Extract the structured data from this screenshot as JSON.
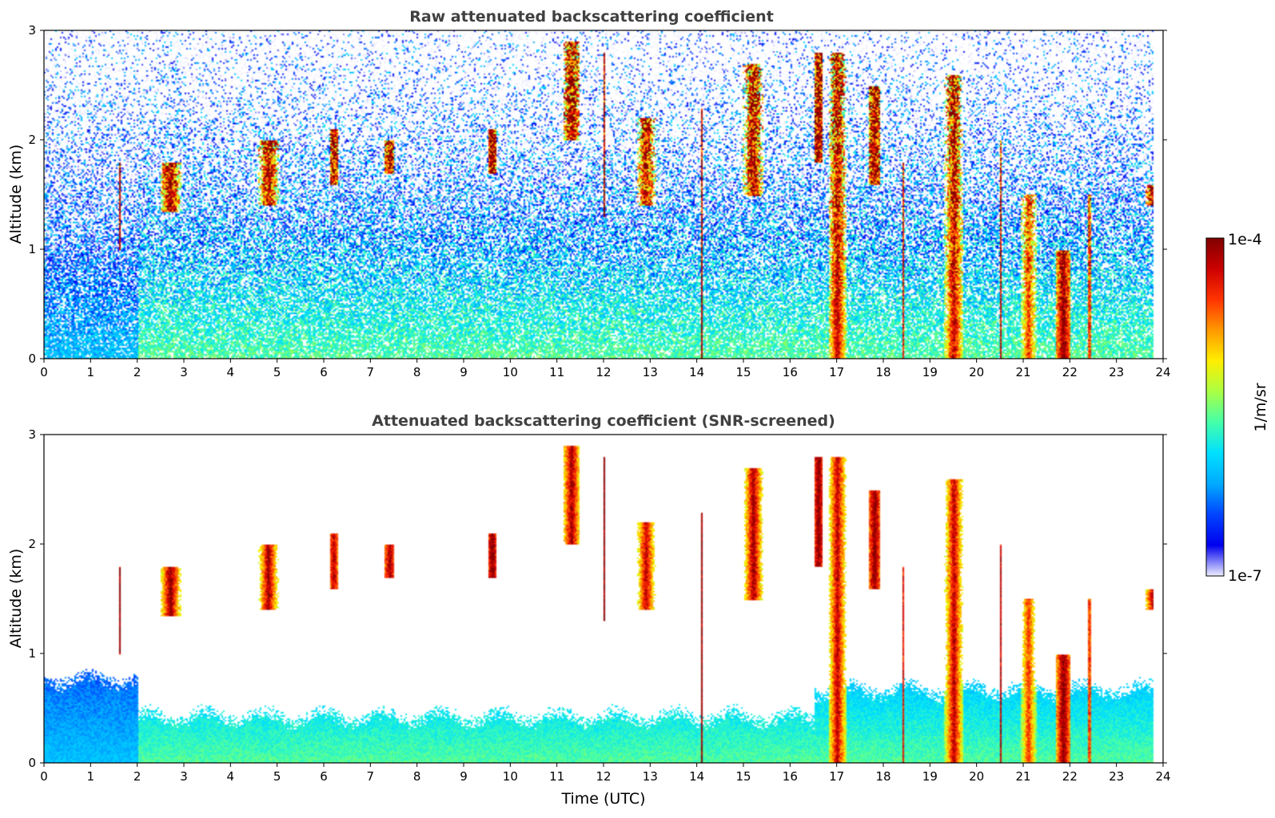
{
  "chart_data": [
    {
      "type": "heatmap",
      "title": "Raw attenuated backscattering coefficient",
      "xlabel": "",
      "ylabel": "Altitude (km)",
      "xlim": [
        0,
        24
      ],
      "ylim": [
        0,
        3
      ],
      "xticks": [
        "0",
        "1",
        "2",
        "3",
        "4",
        "5",
        "6",
        "7",
        "8",
        "9",
        "10",
        "11",
        "12",
        "13",
        "14",
        "15",
        "16",
        "17",
        "18",
        "19",
        "20",
        "21",
        "22",
        "23",
        "24"
      ],
      "yticks": [
        "0",
        "1",
        "2",
        "3"
      ],
      "screened": false,
      "cloud_events": [
        {
          "t": 1.6,
          "top": 1.8,
          "base": 1.0,
          "log10": -4.0
        },
        {
          "t": 2.7,
          "top": 1.8,
          "base": 1.35,
          "log10": -4.0
        },
        {
          "t": 4.8,
          "top": 2.0,
          "base": 1.4,
          "log10": -4.1
        },
        {
          "t": 6.2,
          "top": 2.1,
          "base": 1.6,
          "log10": -4.2
        },
        {
          "t": 7.4,
          "top": 2.0,
          "base": 1.7,
          "log10": -4.1
        },
        {
          "t": 9.6,
          "top": 2.1,
          "base": 1.7,
          "log10": -4.0
        },
        {
          "t": 11.3,
          "top": 2.9,
          "base": 2.0,
          "log10": -4.1
        },
        {
          "t": 12.0,
          "top": 2.8,
          "base": 1.3,
          "log10": -4.0
        },
        {
          "t": 12.9,
          "top": 2.2,
          "base": 1.4,
          "log10": -4.2
        },
        {
          "t": 14.1,
          "top": 2.3,
          "base": 0.0,
          "log10": -4.0
        },
        {
          "t": 15.2,
          "top": 2.7,
          "base": 1.5,
          "log10": -4.1
        },
        {
          "t": 16.6,
          "top": 2.8,
          "base": 1.8,
          "log10": -4.0
        },
        {
          "t": 17.0,
          "top": 2.8,
          "base": 0.0,
          "log10": -4.2
        },
        {
          "t": 17.8,
          "top": 2.5,
          "base": 1.6,
          "log10": -4.0
        },
        {
          "t": 18.4,
          "top": 1.8,
          "base": 0.0,
          "log10": -4.3
        },
        {
          "t": 19.5,
          "top": 2.6,
          "base": 0.0,
          "log10": -4.2
        },
        {
          "t": 20.5,
          "top": 2.0,
          "base": 0.0,
          "log10": -4.2
        },
        {
          "t": 21.1,
          "top": 1.5,
          "base": 0.0,
          "log10": -4.5
        },
        {
          "t": 21.85,
          "top": 1.0,
          "base": 0.0,
          "log10": -4.0
        },
        {
          "t": 22.4,
          "top": 1.5,
          "base": 0.0,
          "log10": -4.5
        },
        {
          "t": 23.8,
          "top": 1.6,
          "base": 1.4,
          "log10": -4.0
        }
      ]
    },
    {
      "type": "heatmap",
      "title": "Attenuated backscattering coefficient (SNR-screened)",
      "xlabel": "Time (UTC)",
      "ylabel": "Altitude (km)",
      "xlim": [
        0,
        24
      ],
      "ylim": [
        0,
        3
      ],
      "xticks": [
        "0",
        "1",
        "2",
        "3",
        "4",
        "5",
        "6",
        "7",
        "8",
        "9",
        "10",
        "11",
        "12",
        "13",
        "14",
        "15",
        "16",
        "17",
        "18",
        "19",
        "20",
        "21",
        "22",
        "23",
        "24"
      ],
      "yticks": [
        "0",
        "1",
        "2",
        "3"
      ],
      "screened": true,
      "cloud_events": [
        {
          "t": 1.6,
          "top": 1.8,
          "base": 1.0,
          "log10": -4.0
        },
        {
          "t": 2.7,
          "top": 1.8,
          "base": 1.35,
          "log10": -4.0
        },
        {
          "t": 4.8,
          "top": 2.0,
          "base": 1.4,
          "log10": -4.1
        },
        {
          "t": 6.2,
          "top": 2.1,
          "base": 1.6,
          "log10": -4.2
        },
        {
          "t": 7.4,
          "top": 2.0,
          "base": 1.7,
          "log10": -4.1
        },
        {
          "t": 9.6,
          "top": 2.1,
          "base": 1.7,
          "log10": -4.0
        },
        {
          "t": 11.3,
          "top": 2.9,
          "base": 2.0,
          "log10": -4.1
        },
        {
          "t": 12.0,
          "top": 2.8,
          "base": 1.3,
          "log10": -4.0
        },
        {
          "t": 12.9,
          "top": 2.2,
          "base": 1.4,
          "log10": -4.2
        },
        {
          "t": 14.1,
          "top": 2.3,
          "base": 0.0,
          "log10": -4.0
        },
        {
          "t": 15.2,
          "top": 2.7,
          "base": 1.5,
          "log10": -4.1
        },
        {
          "t": 16.6,
          "top": 2.8,
          "base": 1.8,
          "log10": -4.0
        },
        {
          "t": 17.0,
          "top": 2.8,
          "base": 0.0,
          "log10": -4.2
        },
        {
          "t": 17.8,
          "top": 2.5,
          "base": 1.6,
          "log10": -4.0
        },
        {
          "t": 18.4,
          "top": 1.8,
          "base": 0.0,
          "log10": -4.3
        },
        {
          "t": 19.5,
          "top": 2.6,
          "base": 0.0,
          "log10": -4.2
        },
        {
          "t": 20.5,
          "top": 2.0,
          "base": 0.0,
          "log10": -4.2
        },
        {
          "t": 21.1,
          "top": 1.5,
          "base": 0.0,
          "log10": -4.5
        },
        {
          "t": 21.85,
          "top": 1.0,
          "base": 0.0,
          "log10": -4.0
        },
        {
          "t": 22.4,
          "top": 1.5,
          "base": 0.0,
          "log10": -4.5
        },
        {
          "t": 23.8,
          "top": 1.6,
          "base": 1.4,
          "log10": -4.0
        }
      ]
    }
  ],
  "colorbar": {
    "max_label": "1e-4",
    "min_label": "1e-7",
    "unit_label": "1/m/sr",
    "colormap": "jet",
    "scale": "log",
    "colors": [
      "#eeeeff",
      "#0000ee",
      "#0044ff",
      "#00aaff",
      "#00e0ff",
      "#44ffaa",
      "#aaff44",
      "#ffee00",
      "#ff9900",
      "#ff3300",
      "#cc0000",
      "#800000"
    ]
  }
}
